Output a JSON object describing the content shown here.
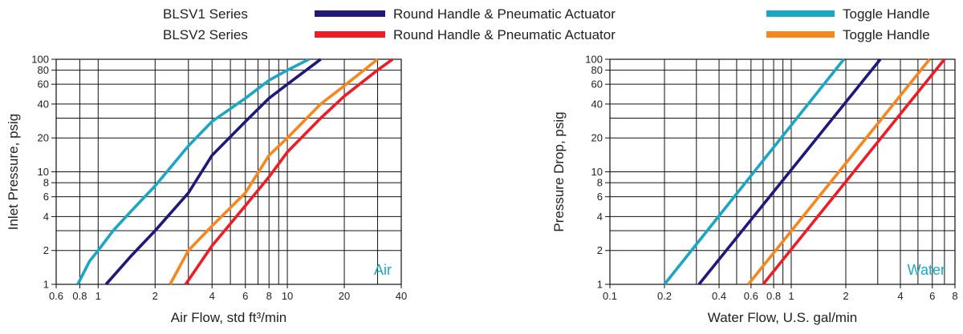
{
  "legend": {
    "series_rows": [
      {
        "name": "BLSV1 Series",
        "entries": [
          {
            "label": "Round Handle & Pneumatic Actuator",
            "color": "#1f1a7a"
          },
          {
            "label": "Toggle Handle",
            "color": "#1aa6c4"
          }
        ]
      },
      {
        "name": "BLSV2 Series",
        "entries": [
          {
            "label": "Round Handle & Pneumatic Actuator",
            "color": "#ee1c25"
          },
          {
            "label": "Toggle Handle",
            "color": "#f7861c"
          }
        ]
      }
    ]
  },
  "chart_data": [
    {
      "type": "line",
      "log_x": true,
      "log_y": true,
      "grid": true,
      "xlabel": "Air Flow, std ft³/min",
      "ylabel": "Inlet Pressure, psig",
      "annotation": "Air",
      "annotation_color": "#1aa6c4",
      "xlim": [
        0.6,
        40
      ],
      "ylim": [
        1,
        100
      ],
      "x_ticks": [
        0.6,
        0.8,
        1,
        2,
        4,
        6,
        8,
        10,
        20,
        40
      ],
      "y_ticks": [
        1,
        2,
        4,
        6,
        8,
        10,
        20,
        40,
        60,
        80,
        100
      ],
      "x_grid": [
        0.6,
        0.8,
        1,
        2,
        3,
        4,
        5,
        6,
        7,
        8,
        9,
        10,
        20,
        30,
        40
      ],
      "y_grid": [
        1,
        2,
        3,
        4,
        6,
        8,
        10,
        20,
        30,
        40,
        60,
        80,
        100
      ],
      "series": [
        {
          "color": "#1aa6c4",
          "points": [
            [
              0.78,
              1
            ],
            [
              0.9,
              1.6
            ],
            [
              1,
              2
            ],
            [
              1.2,
              3
            ],
            [
              1.5,
              4.5
            ],
            [
              2,
              7.5
            ],
            [
              3,
              17
            ],
            [
              4,
              28
            ],
            [
              6,
              45
            ],
            [
              8,
              65
            ],
            [
              10,
              80
            ],
            [
              13,
              100
            ]
          ]
        },
        {
          "color": "#1f1a7a",
          "points": [
            [
              1.1,
              1
            ],
            [
              1.5,
              1.8
            ],
            [
              2,
              3
            ],
            [
              3,
              6.5
            ],
            [
              4,
              14
            ],
            [
              6,
              28
            ],
            [
              8,
              45
            ],
            [
              10,
              60
            ],
            [
              15,
              100
            ]
          ]
        },
        {
          "color": "#f7861c",
          "points": [
            [
              2.4,
              1
            ],
            [
              3,
              2
            ],
            [
              4,
              3.3
            ],
            [
              6,
              6.5
            ],
            [
              8,
              14
            ],
            [
              10,
              20
            ],
            [
              15,
              40
            ],
            [
              20,
              58
            ],
            [
              30,
              100
            ]
          ]
        },
        {
          "color": "#ee1c25",
          "points": [
            [
              2.9,
              1
            ],
            [
              4,
              2.2
            ],
            [
              6,
              5
            ],
            [
              8,
              9
            ],
            [
              10,
              15
            ],
            [
              15,
              30
            ],
            [
              20,
              47
            ],
            [
              30,
              80
            ],
            [
              36,
              100
            ]
          ]
        }
      ]
    },
    {
      "type": "line",
      "log_x": true,
      "log_y": true,
      "grid": true,
      "xlabel": "Water Flow, U.S. gal/min",
      "ylabel": "Pressure Drop, psig",
      "annotation": "Water",
      "annotation_color": "#1aa6c4",
      "xlim": [
        0.1,
        8
      ],
      "ylim": [
        1,
        100
      ],
      "x_ticks": [
        0.1,
        0.2,
        0.4,
        0.6,
        0.8,
        1,
        2,
        4,
        6,
        8
      ],
      "y_ticks": [
        1,
        2,
        4,
        6,
        8,
        10,
        20,
        40,
        60,
        80,
        100
      ],
      "x_grid": [
        0.1,
        0.2,
        0.3,
        0.4,
        0.5,
        0.6,
        0.7,
        0.8,
        0.9,
        1,
        2,
        3,
        4,
        5,
        6,
        7,
        8
      ],
      "y_grid": [
        1,
        2,
        3,
        4,
        6,
        8,
        10,
        20,
        30,
        40,
        60,
        80,
        100
      ],
      "series": [
        {
          "color": "#1aa6c4",
          "points": [
            [
              0.2,
              1
            ],
            [
              1.95,
              100
            ]
          ]
        },
        {
          "color": "#1f1a7a",
          "points": [
            [
              0.31,
              1
            ],
            [
              3.1,
              100
            ]
          ]
        },
        {
          "color": "#f7861c",
          "points": [
            [
              0.58,
              1
            ],
            [
              5.8,
              100
            ]
          ]
        },
        {
          "color": "#ee1c25",
          "points": [
            [
              0.7,
              1
            ],
            [
              7,
              100
            ]
          ]
        }
      ]
    }
  ]
}
